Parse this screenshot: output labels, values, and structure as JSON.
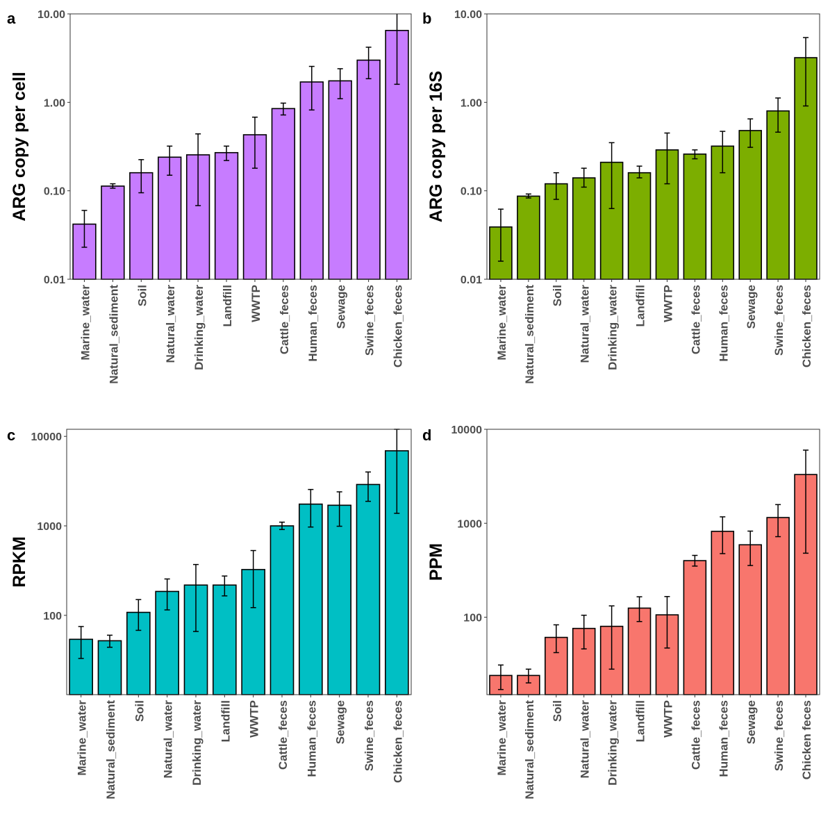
{
  "figure": {
    "panel_letters": [
      "a",
      "b",
      "c",
      "d"
    ]
  },
  "chart_data": [
    {
      "type": "bar",
      "panel": "a",
      "ylabel": "ARG copy  per cell",
      "xlabel": "",
      "scale": "log10",
      "ylim": [
        0.01,
        10
      ],
      "yticks": [
        0.01,
        0.1,
        1,
        10
      ],
      "yticklabels": [
        "0.01",
        "0.10",
        "1.00",
        "10.00"
      ],
      "grid": false,
      "color": "#C77CFF",
      "categories": [
        "Marine_water",
        "Natural_sediment",
        "Soil",
        "Natural_water",
        "Drinking_water",
        "Landfill",
        "WWTP",
        "Cattle_feces",
        "Human_feces",
        "Sewage",
        "Swine_feces",
        "Chicken_feces"
      ],
      "values": [
        0.042,
        0.113,
        0.16,
        0.24,
        0.255,
        0.27,
        0.43,
        0.85,
        1.7,
        1.75,
        3.0,
        6.5
      ],
      "error_low": [
        0.023,
        0.107,
        0.095,
        0.15,
        0.068,
        0.22,
        0.18,
        0.72,
        0.82,
        1.1,
        1.85,
        1.6
      ],
      "error_high": [
        0.06,
        0.12,
        0.225,
        0.32,
        0.44,
        0.32,
        0.68,
        0.98,
        2.55,
        2.4,
        4.2,
        11.5
      ]
    },
    {
      "type": "bar",
      "panel": "b",
      "ylabel": "ARG copy  per 16S",
      "xlabel": "",
      "scale": "log10",
      "ylim": [
        0.01,
        10
      ],
      "yticks": [
        0.01,
        0.1,
        1,
        10
      ],
      "yticklabels": [
        "0.01",
        "0.10",
        "1.00",
        "10.00"
      ],
      "grid": false,
      "color": "#7CAE00",
      "categories": [
        "Marine_water",
        "Natural_sediment",
        "Soil",
        "Natural_water",
        "Drinking_water",
        "Landfill",
        "WWTP",
        "Cattle_feces",
        "Human_feces",
        "Sewage",
        "Swine_feces",
        "Chicken_feces"
      ],
      "values": [
        0.039,
        0.087,
        0.12,
        0.14,
        0.21,
        0.16,
        0.29,
        0.26,
        0.32,
        0.48,
        0.8,
        3.2
      ],
      "error_low": [
        0.016,
        0.083,
        0.08,
        0.11,
        0.063,
        0.14,
        0.12,
        0.23,
        0.16,
        0.31,
        0.46,
        0.91
      ],
      "error_high": [
        0.062,
        0.092,
        0.16,
        0.18,
        0.35,
        0.19,
        0.45,
        0.29,
        0.47,
        0.65,
        1.12,
        5.4
      ]
    },
    {
      "type": "bar",
      "panel": "c",
      "ylabel": "RPKM",
      "xlabel": "",
      "scale": "log10",
      "ylim": [
        13,
        12000
      ],
      "yticks": [
        100,
        1000,
        10000
      ],
      "yticklabels": [
        "100",
        "1000",
        "10000"
      ],
      "grid": false,
      "color": "#00BFC4",
      "categories": [
        "Marine_water",
        "Natural_sediment",
        "Soil",
        "Natural_water",
        "Drinking_water",
        "Landfill",
        "WWTP",
        "Cattle_feces",
        "Human_feces",
        "Sewage",
        "Swine_feces",
        "Chicken_feces"
      ],
      "values": [
        54,
        52,
        108,
        185,
        218,
        218,
        325,
        1000,
        1750,
        1700,
        2900,
        6900
      ],
      "error_low": [
        33,
        44,
        68,
        115,
        66,
        165,
        122,
        910,
        970,
        990,
        1880,
        1380
      ],
      "error_high": [
        75,
        60,
        150,
        255,
        370,
        275,
        530,
        1100,
        2550,
        2400,
        4000,
        12000
      ]
    },
    {
      "type": "bar",
      "panel": "d",
      "ylabel": "PPM",
      "xlabel": "",
      "scale": "log10",
      "ylim": [
        15,
        10000
      ],
      "yticks": [
        100,
        1000,
        10000
      ],
      "yticklabels": [
        "100",
        "1000",
        "10000"
      ],
      "grid": false,
      "color": "#F8766D",
      "categories": [
        "Marine_water",
        "Natural_sediment",
        "Soil",
        "Natural_water",
        "Drinking_water",
        "Landfill",
        "WWTP",
        "Cattle_feces",
        "Human_feces",
        "Sewage",
        "Swine_feces",
        "Chicken feces"
      ],
      "values": [
        24,
        24,
        61,
        76,
        80,
        125,
        106,
        400,
        820,
        590,
        1150,
        3300
      ],
      "error_low": [
        17,
        20,
        42,
        46,
        28,
        90,
        47,
        350,
        475,
        355,
        720,
        480
      ],
      "error_high": [
        31,
        28,
        83,
        105,
        132,
        165,
        166,
        455,
        1170,
        825,
        1580,
        6000
      ]
    }
  ]
}
